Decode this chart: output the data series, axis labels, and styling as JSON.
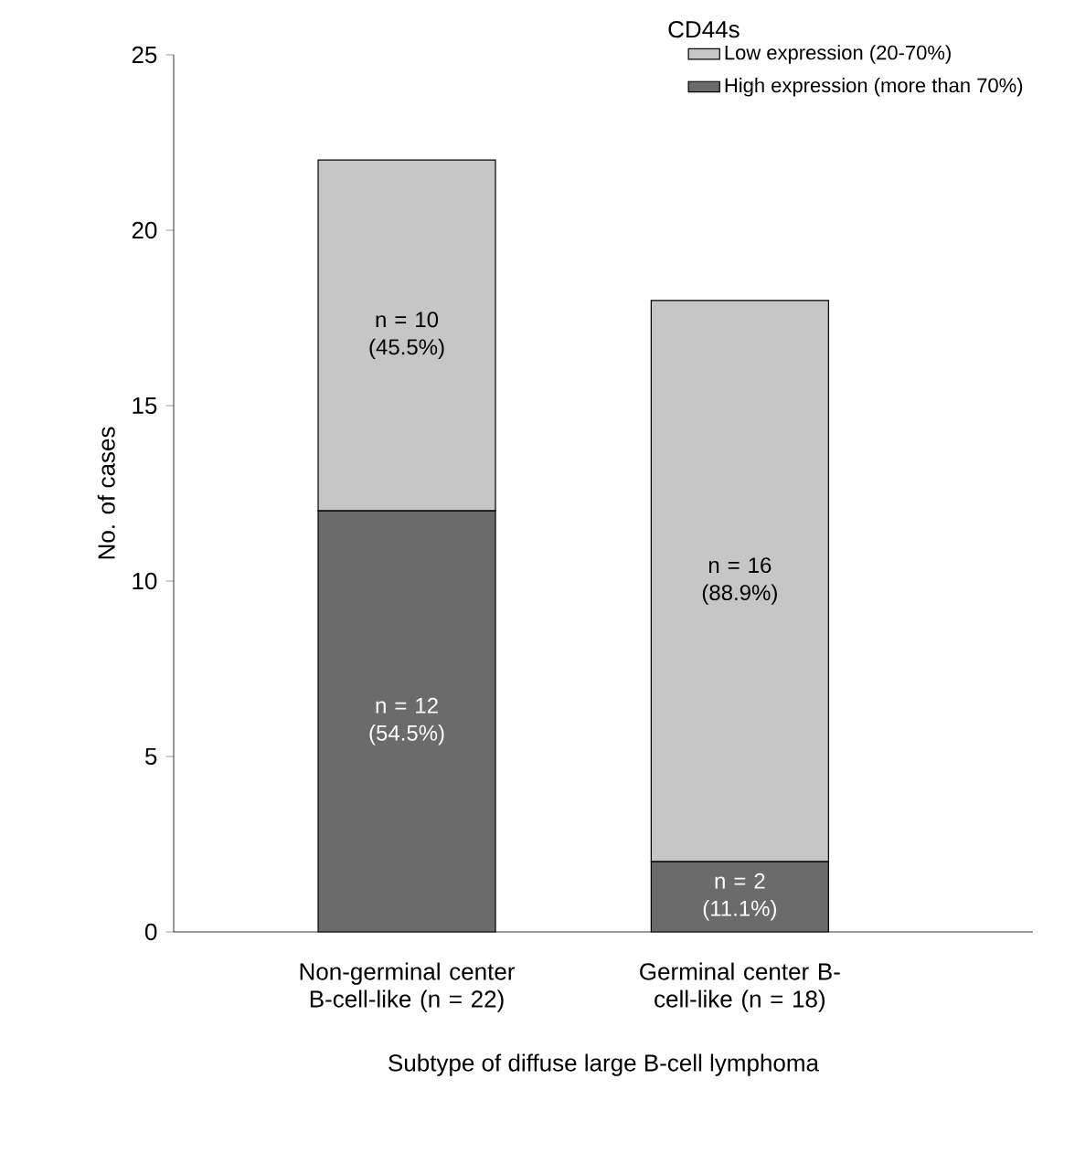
{
  "chart_data": {
    "type": "bar",
    "stacked": true,
    "xlabel": "Subtype of diffuse large B-cell lymphoma",
    "ylabel": "No. of cases",
    "legend_title": "CD44s",
    "legend": "top right",
    "categories": [
      "Non-germinal center B-cell-like (n = 22)",
      "Germinal center B-cell-like (n = 18)"
    ],
    "ylim": [
      0,
      25
    ],
    "yticks": [
      0,
      5,
      10,
      15,
      20,
      25
    ],
    "series": [
      {
        "name": "High expression (more than 70%)",
        "color": "#6b6b6b",
        "values": [
          12,
          2
        ],
        "value_labels": [
          "n = 12 (54.5%)",
          "n = 2 (11.1%)"
        ]
      },
      {
        "name": "Low expression (20-70%)",
        "color": "#c6c6c6",
        "values": [
          10,
          16
        ],
        "value_labels": [
          "n = 10 (45.5%)",
          "n = 16 (88.9%)"
        ]
      }
    ]
  }
}
